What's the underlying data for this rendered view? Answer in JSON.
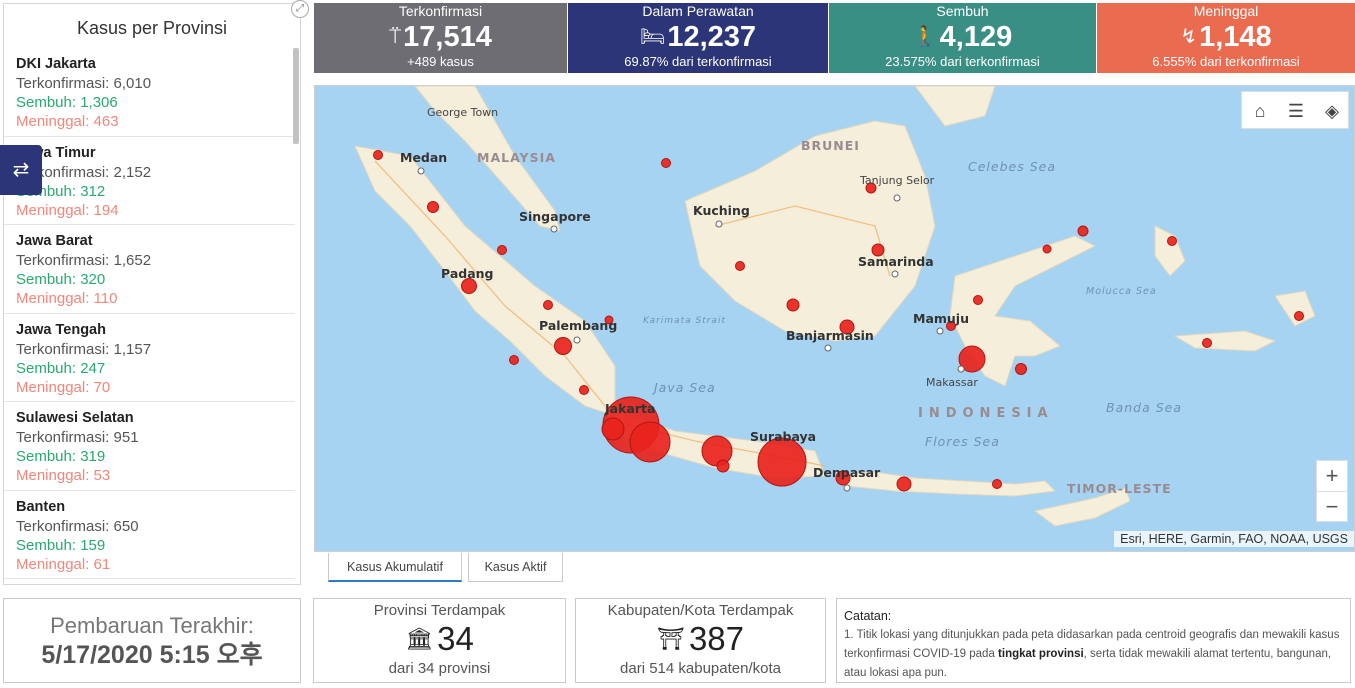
{
  "left_panel": {
    "title": "Kasus per Provinsi",
    "provinces": [
      {
        "name": "DKI Jakarta",
        "confirmed": "Terkonfirmasi: 6,010",
        "recovered": "Sembuh: 1,306",
        "deaths": "Meninggal: 463"
      },
      {
        "name": "Jawa Timur",
        "confirmed": "Terkonfirmasi: 2,152",
        "recovered": "Sembuh: 312",
        "deaths": "Meninggal: 194"
      },
      {
        "name": "Jawa Barat",
        "confirmed": "Terkonfirmasi: 1,652",
        "recovered": "Sembuh: 320",
        "deaths": "Meninggal: 110"
      },
      {
        "name": "Jawa Tengah",
        "confirmed": "Terkonfirmasi: 1,157",
        "recovered": "Sembuh: 247",
        "deaths": "Meninggal: 70"
      },
      {
        "name": "Sulawesi Selatan",
        "confirmed": "Terkonfirmasi: 951",
        "recovered": "Sembuh: 319",
        "deaths": "Meninggal: 53"
      },
      {
        "name": "Banten",
        "confirmed": "Terkonfirmasi: 650",
        "recovered": "Sembuh: 159",
        "deaths": "Meninggal: 61"
      }
    ]
  },
  "stats": {
    "confirmed": {
      "label": "Terkonfirmasi",
      "value": "17,514",
      "sub": "+489 kasus",
      "icon": "person-alert-icon"
    },
    "in_care": {
      "label": "Dalam Perawatan",
      "value": "12,237",
      "sub": "69.87% dari terkonfirmasi",
      "icon": "hospital-bed-icon"
    },
    "recovered": {
      "label": "Sembuh",
      "value": "4,129",
      "sub": "23.575% dari terkonfirmasi",
      "icon": "walking-person-icon"
    },
    "deaths": {
      "label": "Meninggal",
      "value": "1,148",
      "sub": "6.555% dari terkonfirmasi",
      "icon": "fallen-person-icon"
    }
  },
  "colors": {
    "confirmed": "#6d6d73",
    "in_care": "#2b3578",
    "recovered": "#3a8f85",
    "deaths": "#ea6b50",
    "recovered_text": "#2aa86f",
    "deaths_text": "#f0877a"
  },
  "map": {
    "labels": {
      "george_town": "George Town",
      "medan": "Medan",
      "malaysia": "MALAYSIA",
      "brunei": "BRUNEI",
      "celebes_sea": "Celebes Sea",
      "tanjung_selor": "Tanjung Selor",
      "kuching": "Kuching",
      "singapore": "Singapore",
      "padang": "Padang",
      "samarinda": "Samarinda",
      "moluccca_sea": "Molucca Sea",
      "palembang": "Palembang",
      "karimata": "Karimata Strait",
      "mamuju": "Mamuju",
      "banjarmasin": "Banjarmasin",
      "java_sea": "Java Sea",
      "makassar": "Makassar",
      "jakarta": "Jakarta",
      "indonesia": "INDONESIA",
      "banda_sea": "Banda Sea",
      "surabaya": "Surabaya",
      "flores_sea": "Flores Sea",
      "denpasar": "Denpasar",
      "timor_leste": "TIMOR-LESTE"
    },
    "attribution": "Esri, HERE, Garmin, FAO, NOAA, USGS",
    "tools": [
      "home-icon",
      "list-icon",
      "layers-icon"
    ],
    "zoom_in": "+",
    "zoom_out": "−"
  },
  "tabs": {
    "cumulative": "Kasus Akumulatif",
    "active": "Kasus Aktif"
  },
  "last_update": {
    "label": "Pembaruan Terakhir:",
    "value": "5/17/2020 5:15 오후"
  },
  "affected_provinces": {
    "label": "Provinsi Terdampak",
    "value": "34",
    "sub": "dari 34 provinsi"
  },
  "affected_regencies": {
    "label": "Kabupaten/Kota Terdampak",
    "value": "387",
    "sub": "dari 514 kabupaten/kota"
  },
  "note": {
    "title": "Catatan:",
    "text_before": "1. Titik lokasi yang ditunjukkan pada peta didasarkan pada centroid geografis dan mewakili kasus terkonfirmasi COVID-19 pada ",
    "text_bold": "tingkat provinsi",
    "text_after": ", serta tidak mewakili alamat tertentu, bangunan, atau lokasi apa pun."
  }
}
